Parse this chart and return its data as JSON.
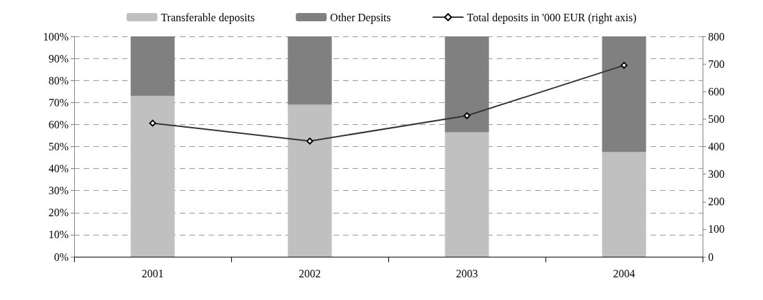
{
  "chart_data": {
    "type": "bar",
    "stacked": true,
    "categories": [
      "2001",
      "2002",
      "2003",
      "2004"
    ],
    "series": [
      {
        "name": "Transferable deposits",
        "color": "#c0c0c0",
        "values": [
          73,
          69,
          56.5,
          47.5
        ]
      },
      {
        "name": "Other Depsits",
        "color": "#808080",
        "values": [
          27,
          31,
          43.5,
          52.5
        ]
      },
      {
        "name": "Total deposits in '000 EUR (right axis)",
        "type": "line",
        "axis": "y2",
        "color": "#333333",
        "marker": "diamond",
        "values": [
          485,
          420,
          512,
          695
        ]
      }
    ],
    "ylim": [
      0,
      100
    ],
    "yticks": [
      {
        "value": 0,
        "label": "0%"
      },
      {
        "value": 10,
        "label": "10%"
      },
      {
        "value": 20,
        "label": "20%"
      },
      {
        "value": 30,
        "label": "30%"
      },
      {
        "value": 40,
        "label": "40%"
      },
      {
        "value": 50,
        "label": "50%"
      },
      {
        "value": 60,
        "label": "60%"
      },
      {
        "value": 70,
        "label": "70%"
      },
      {
        "value": 80,
        "label": "80%"
      },
      {
        "value": 90,
        "label": "90%"
      },
      {
        "value": 100,
        "label": "100%"
      }
    ],
    "y2lim": [
      0,
      800
    ],
    "y2ticks": [
      0,
      100,
      200,
      300,
      400,
      500,
      600,
      700,
      800
    ],
    "grid": "y",
    "legend": "top"
  }
}
